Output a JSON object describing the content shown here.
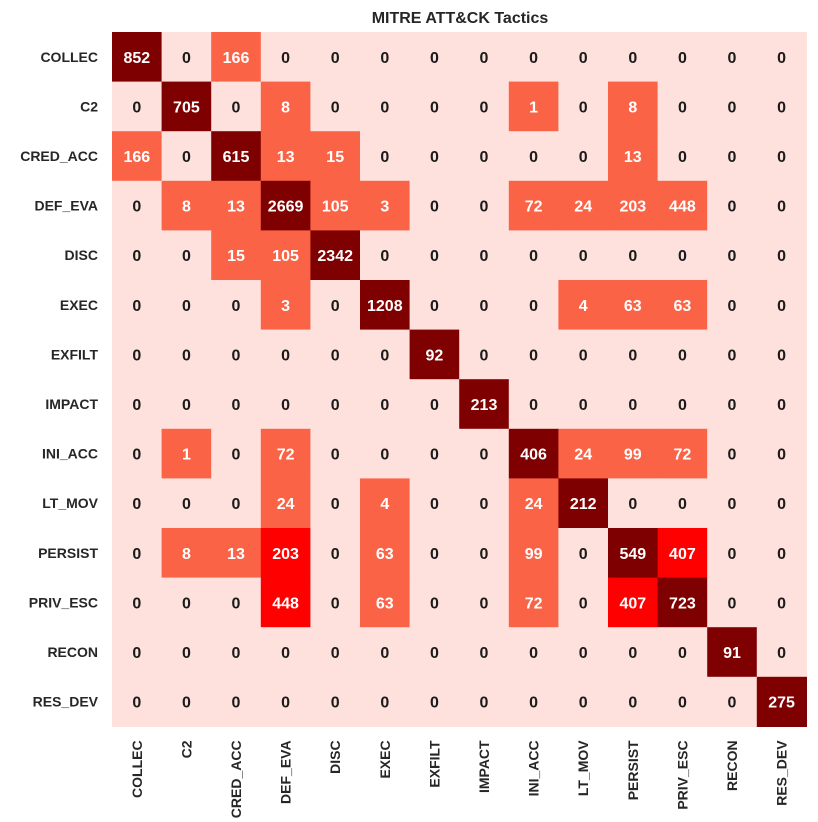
{
  "chart_data": {
    "type": "heatmap",
    "title": "MITRE ATT&CK Tactics",
    "xlabel": "",
    "ylabel": "",
    "row_labels": [
      "COLLEC",
      "C2",
      "CRED_ACC",
      "DEF_EVA",
      "DISC",
      "EXEC",
      "EXFILT",
      "IMPACT",
      "INI_ACC",
      "LT_MOV",
      "PERSIST",
      "PRIV_ESC",
      "RECON",
      "RES_DEV"
    ],
    "col_labels": [
      "COLLEC",
      "C2",
      "CRED_ACC",
      "DEF_EVA",
      "DISC",
      "EXEC",
      "EXFILT",
      "IMPACT",
      "INI_ACC",
      "LT_MOV",
      "PERSIST",
      "PRIV_ESC",
      "RECON",
      "RES_DEV"
    ],
    "values": [
      [
        852,
        0,
        166,
        0,
        0,
        0,
        0,
        0,
        0,
        0,
        0,
        0,
        0,
        0
      ],
      [
        0,
        705,
        0,
        8,
        0,
        0,
        0,
        0,
        1,
        0,
        8,
        0,
        0,
        0
      ],
      [
        166,
        0,
        615,
        13,
        15,
        0,
        0,
        0,
        0,
        0,
        13,
        0,
        0,
        0
      ],
      [
        0,
        8,
        13,
        2669,
        105,
        3,
        0,
        0,
        72,
        24,
        203,
        448,
        0,
        0
      ],
      [
        0,
        0,
        15,
        105,
        2342,
        0,
        0,
        0,
        0,
        0,
        0,
        0,
        0,
        0
      ],
      [
        0,
        0,
        0,
        3,
        0,
        1208,
        0,
        0,
        0,
        4,
        63,
        63,
        0,
        0
      ],
      [
        0,
        0,
        0,
        0,
        0,
        0,
        92,
        0,
        0,
        0,
        0,
        0,
        0,
        0
      ],
      [
        0,
        0,
        0,
        0,
        0,
        0,
        0,
        213,
        0,
        0,
        0,
        0,
        0,
        0
      ],
      [
        0,
        1,
        0,
        72,
        0,
        0,
        0,
        0,
        406,
        24,
        99,
        72,
        0,
        0
      ],
      [
        0,
        0,
        0,
        24,
        0,
        4,
        0,
        0,
        24,
        212,
        0,
        0,
        0,
        0
      ],
      [
        0,
        8,
        13,
        203,
        0,
        63,
        0,
        0,
        99,
        0,
        549,
        407,
        0,
        0
      ],
      [
        0,
        0,
        0,
        448,
        0,
        63,
        0,
        0,
        72,
        0,
        407,
        723,
        0,
        0
      ],
      [
        0,
        0,
        0,
        0,
        0,
        0,
        0,
        0,
        0,
        0,
        0,
        0,
        91,
        0
      ],
      [
        0,
        0,
        0,
        0,
        0,
        0,
        0,
        0,
        0,
        0,
        0,
        0,
        0,
        275
      ]
    ],
    "colors": {
      "zero": "#fee1dc",
      "low": "#fb6346",
      "mid": "#fe0000",
      "high": "#b01e1e",
      "max": "#7f0000",
      "text_light": "#ffffff",
      "text_dark": "#1a1a1a"
    },
    "colorbar": false,
    "grid": false
  }
}
